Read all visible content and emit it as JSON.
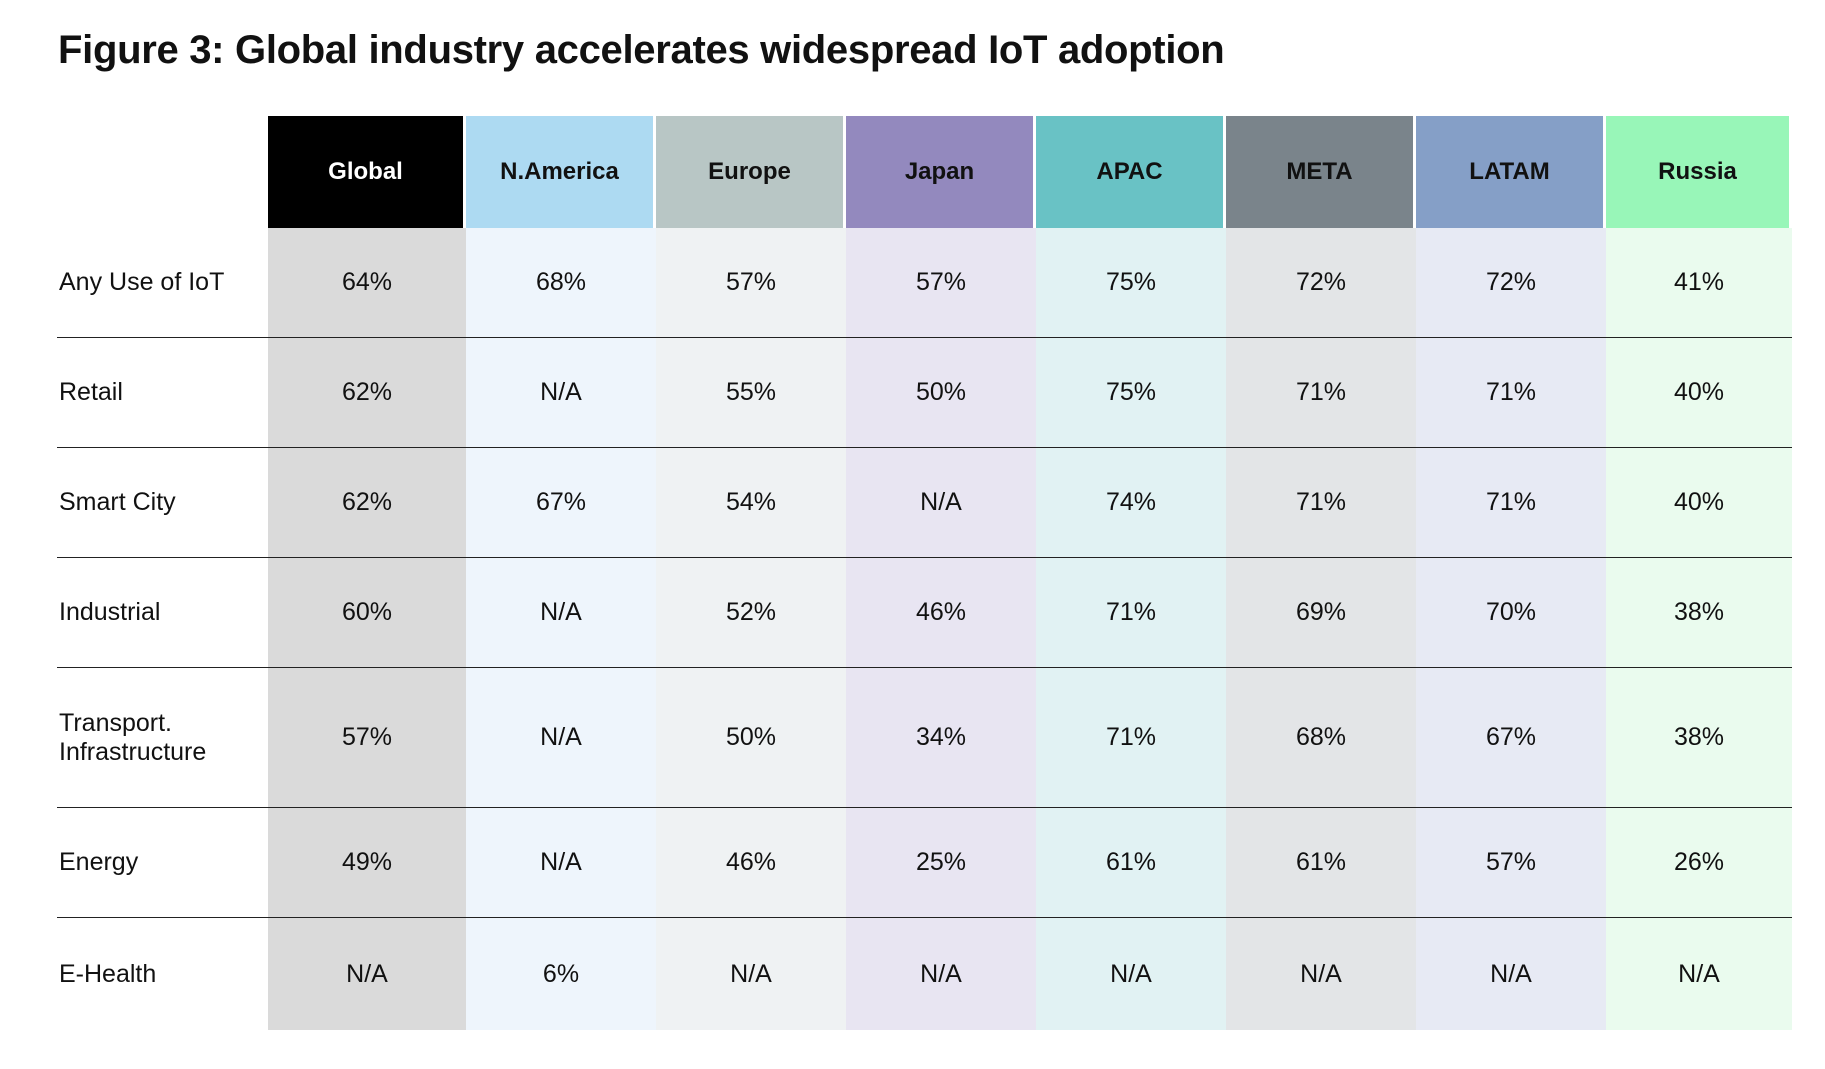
{
  "title": "Figure 3: Global industry accelerates widespread IoT adoption",
  "colors": {
    "header_bg": [
      "#000000",
      "#ADDAF2",
      "#B8C6C5",
      "#9389BE",
      "#69C2C5",
      "#7A848B",
      "#859FC7",
      "#98F6B8"
    ],
    "header_fg": [
      "#FFFFFF",
      "#111111",
      "#111111",
      "#111111",
      "#111111",
      "#111111",
      "#111111",
      "#111111"
    ],
    "column_bg": [
      "#DADADA",
      "#EEF5FC",
      "#EFF2F3",
      "#E8E5F2",
      "#E1F2F3",
      "#E3E5E7",
      "#E7EAF4",
      "#EAFBEE"
    ]
  },
  "chart_data": {
    "type": "table",
    "title": "Figure 3: Global industry accelerates widespread IoT adoption",
    "columns": [
      "Global",
      "N.America",
      "Europe",
      "Japan",
      "APAC",
      "META",
      "LATAM",
      "Russia"
    ],
    "rows": [
      {
        "label": "Any Use of IoT",
        "values": [
          "64%",
          "68%",
          "57%",
          "57%",
          "75%",
          "72%",
          "72%",
          "41%"
        ]
      },
      {
        "label": "Retail",
        "values": [
          "62%",
          "N/A",
          "55%",
          "50%",
          "75%",
          "71%",
          "71%",
          "40%"
        ]
      },
      {
        "label": "Smart City",
        "values": [
          "62%",
          "67%",
          "54%",
          "N/A",
          "74%",
          "71%",
          "71%",
          "40%"
        ]
      },
      {
        "label": "Industrial",
        "values": [
          "60%",
          "N/A",
          "52%",
          "46%",
          "71%",
          "69%",
          "70%",
          "38%"
        ]
      },
      {
        "label": "Transport. Infrastructure",
        "values": [
          "57%",
          "N/A",
          "50%",
          "34%",
          "71%",
          "68%",
          "67%",
          "38%"
        ]
      },
      {
        "label": "Energy",
        "values": [
          "49%",
          "N/A",
          "46%",
          "25%",
          "61%",
          "61%",
          "57%",
          "26%"
        ]
      },
      {
        "label": "E-Health",
        "values": [
          "N/A",
          "6%",
          "N/A",
          "N/A",
          "N/A",
          "N/A",
          "N/A",
          "N/A"
        ]
      }
    ]
  }
}
